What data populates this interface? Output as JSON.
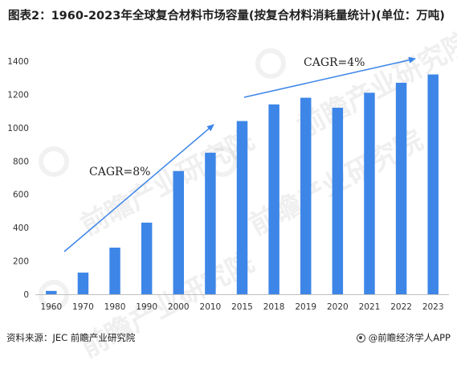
{
  "header": {
    "title": "图表2：1960-2023年全球复合材料市场容量(按复合材料消耗量统计)(单位：万吨)"
  },
  "watermark": {
    "text": "前瞻产业研究院"
  },
  "footer": {
    "source": "资料来源：JEC 前瞻产业研究院",
    "brand": "@前瞻经济学人APP"
  },
  "colors": {
    "bar": "#3d86e8",
    "arrow": "#3d86e8",
    "axis": "#bfbfbf"
  },
  "chart_data": {
    "type": "bar",
    "title": "",
    "xlabel": "",
    "ylabel": "",
    "categories": [
      "1960",
      "1970",
      "1980",
      "1990",
      "2000",
      "2010",
      "2015",
      "2018",
      "2019",
      "2020",
      "2021",
      "2022",
      "2023"
    ],
    "values": [
      20,
      130,
      280,
      430,
      740,
      850,
      1040,
      1140,
      1180,
      1120,
      1210,
      1270,
      1320
    ],
    "ylim": [
      0,
      1400
    ],
    "yticks": [
      0,
      200,
      400,
      600,
      800,
      1000,
      1200,
      1400
    ],
    "grid": false,
    "annotations": [
      {
        "label": "CAGR=8%"
      },
      {
        "label": "CAGR=4%"
      }
    ]
  }
}
